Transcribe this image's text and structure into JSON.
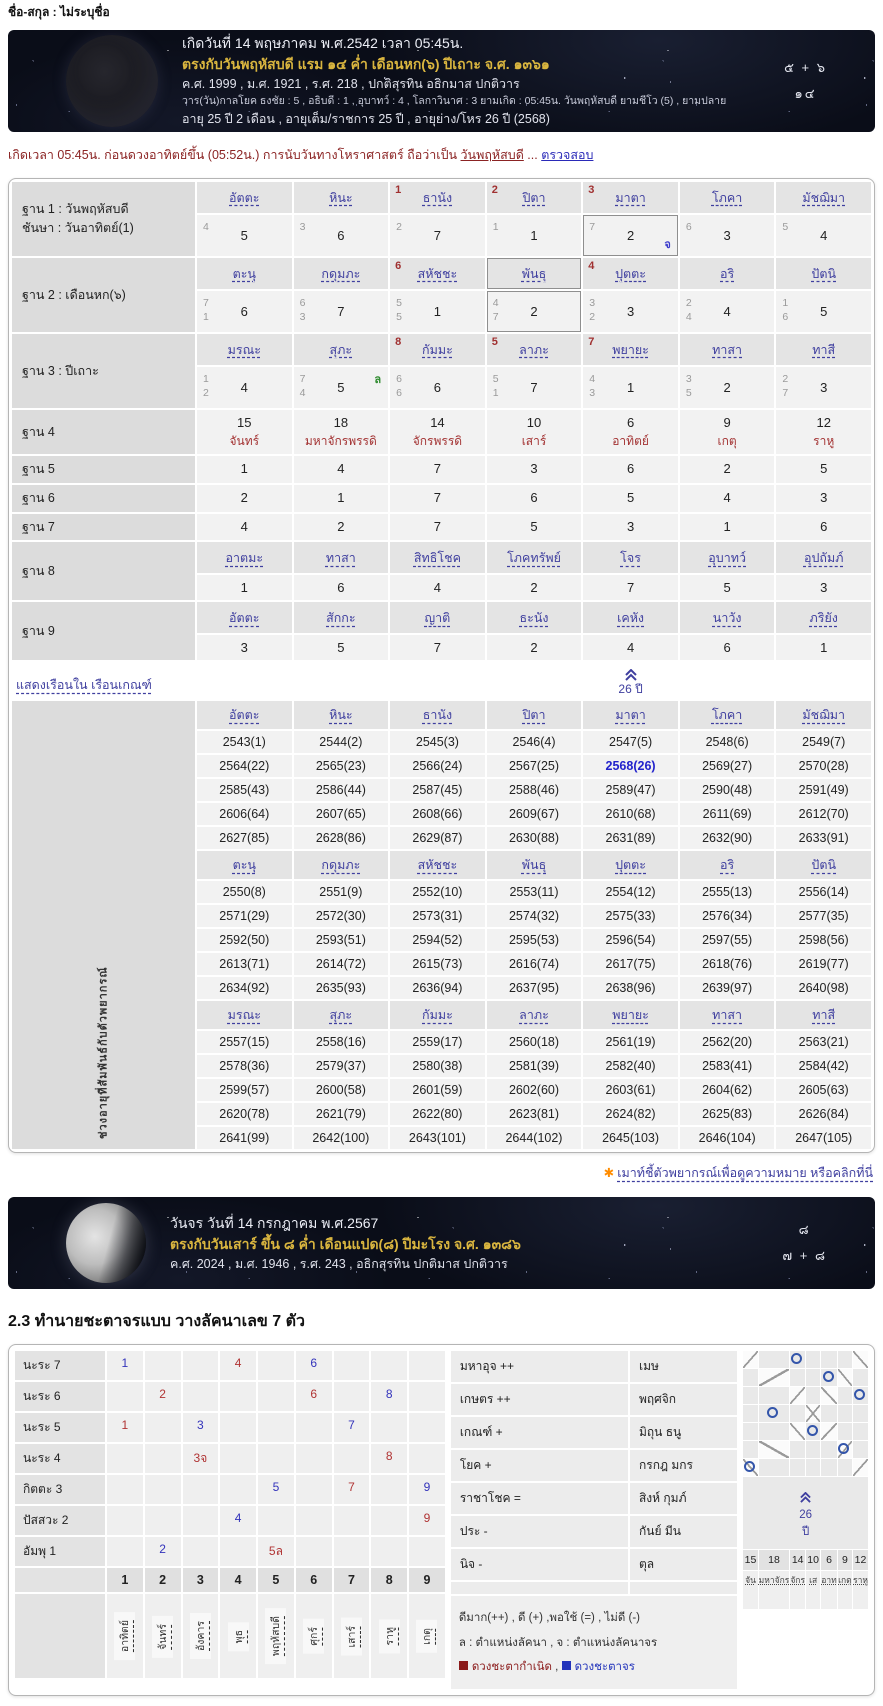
{
  "colors": {
    "link": "#3f3f9f",
    "corner_red": "#a03030",
    "planet_red": "#a33333",
    "note_maroon": "#8b2323",
    "gold": "#d9b53f",
    "natal_red": "#8b1a1a",
    "transit_blue": "#2233bb",
    "highlight_year": "#2222cc"
  },
  "header": {
    "name_line": "ชื่อ-สกุล : ไม่ระบุชื่อ"
  },
  "banner_birth": {
    "line1": "เกิดวันที่ 14 พฤษภาคม พ.ศ.2542 เวลา 05:45น.",
    "line2": "ตรงกับวันพฤหัสบดี แรม ๑๔ ค่ำ เดือนหก(๖) ปีเถาะ จ.ศ. ๑๓๖๑",
    "line3": "ค.ศ. 1999 , ม.ศ. 1921 , ร.ศ. 218 , ปกติสุรทิน อธิกมาส ปกติวาร",
    "line4": "วาร(วัน)กาลโยค ธงชัย : 5 , อธิบดี : 1 , อุบาทว์ : 4 , โลกาวินาศ : 3 ยามเกิด : 05:45น. วันพฤหัสบดี ยามชีโว (5) , ยามปลาย",
    "line5": "อายุ 25 ปี 2 เดือน , อายุเต็ม/ราชการ 25 ปี , อายุย่าง/โหร 26 ปี (2568)",
    "numerals_top": "๕ + ๖",
    "numerals_bottom": "๑๔"
  },
  "birth_note": {
    "text_before": "เกิดเวลา 05:45น. ก่อนดวงอาทิตย์ขึ้น (05:52น.) การนับวันทางโหราศาสตร์ ถือว่าเป็น ",
    "link_day": "วันพฤหัสบดี",
    "dots": " ... ",
    "link_check": "ตรวจสอบ"
  },
  "base_table": {
    "houses": [
      {
        "kind": "terms",
        "label_lines": [
          "ฐาน 1 : วันพฤหัสบดี",
          "ชันษา : วันอาทิตย์(1)"
        ],
        "cells": [
          {
            "h": "อัตตะ",
            "s": [
              "4"
            ],
            "v": "5"
          },
          {
            "h": "หินะ",
            "s": [
              "3"
            ],
            "v": "6"
          },
          {
            "h": "ธานัง",
            "c": "1",
            "s": [
              "2"
            ],
            "v": "7"
          },
          {
            "h": "ปิตา",
            "c": "2",
            "s": [
              "1"
            ],
            "v": "1"
          },
          {
            "h": "มาตา",
            "c": "3",
            "s": [
              "7"
            ],
            "v": "2",
            "mark": {
              "t": "จ",
              "pos": "br",
              "color": "#3a3acc"
            },
            "boxed": true
          },
          {
            "h": "โภคา",
            "s": [
              "6"
            ],
            "v": "3"
          },
          {
            "h": "มัชฌิมา",
            "s": [
              "5"
            ],
            "v": "4"
          }
        ]
      },
      {
        "kind": "terms",
        "label_lines": [
          "ฐาน 2 : เดือนหก(๖)"
        ],
        "cells": [
          {
            "h": "ตะนุ",
            "s": [
              "7",
              "1"
            ],
            "v": "6"
          },
          {
            "h": "กดุมภะ",
            "s": [
              "6",
              "3"
            ],
            "v": "7"
          },
          {
            "h": "สหัชชะ",
            "c": "6",
            "s": [
              "5",
              "5"
            ],
            "v": "1"
          },
          {
            "h": "พันธุ",
            "s": [
              "4",
              "7"
            ],
            "v": "2",
            "boxed": true,
            "boxed_header": true
          },
          {
            "h": "ปุตตะ",
            "c": "4",
            "s": [
              "3",
              "2"
            ],
            "v": "3"
          },
          {
            "h": "อริ",
            "s": [
              "2",
              "4"
            ],
            "v": "4"
          },
          {
            "h": "ปัตนิ",
            "s": [
              "1",
              "6"
            ],
            "v": "5"
          }
        ]
      },
      {
        "kind": "terms",
        "label_lines": [
          "ฐาน 3 : ปีเถาะ"
        ],
        "cells": [
          {
            "h": "มรณะ",
            "s": [
              "1",
              "2"
            ],
            "v": "4"
          },
          {
            "h": "สุภะ",
            "s": [
              "7",
              "4"
            ],
            "v": "5",
            "mark": {
              "t": "ล",
              "pos": "tr",
              "color": "#2e8b2e"
            }
          },
          {
            "h": "กัมมะ",
            "c": "8",
            "s": [
              "6",
              "6"
            ],
            "v": "6"
          },
          {
            "h": "ลาภะ",
            "c": "5",
            "s": [
              "5",
              "1"
            ],
            "v": "7"
          },
          {
            "h": "พยายะ",
            "c": "7",
            "s": [
              "4",
              "3"
            ],
            "v": "1"
          },
          {
            "h": "ทาสา",
            "s": [
              "3",
              "5"
            ],
            "v": "2"
          },
          {
            "h": "ทาสี",
            "s": [
              "2",
              "7"
            ],
            "v": "3"
          }
        ]
      },
      {
        "kind": "planet",
        "label_lines": [
          "ฐาน 4"
        ],
        "cells": [
          {
            "v": "15",
            "n": "จันทร์"
          },
          {
            "v": "18",
            "n": "มหาจักรพรรดิ"
          },
          {
            "v": "14",
            "n": "จักรพรรดิ"
          },
          {
            "v": "10",
            "n": "เสาร์"
          },
          {
            "v": "6",
            "n": "อาทิตย์"
          },
          {
            "v": "9",
            "n": "เกตุ"
          },
          {
            "v": "12",
            "n": "ราหู"
          }
        ]
      },
      {
        "kind": "plain",
        "label_lines": [
          "ฐาน 5"
        ],
        "values": [
          "1",
          "4",
          "7",
          "3",
          "6",
          "2",
          "5"
        ]
      },
      {
        "kind": "plain",
        "label_lines": [
          "ฐาน 6"
        ],
        "values": [
          "2",
          "1",
          "7",
          "6",
          "5",
          "4",
          "3"
        ]
      },
      {
        "kind": "plain",
        "label_lines": [
          "ฐาน 7"
        ],
        "values": [
          "4",
          "2",
          "7",
          "5",
          "3",
          "1",
          "6"
        ]
      },
      {
        "kind": "terms2",
        "label_lines": [
          "ฐาน 8"
        ],
        "cells": [
          {
            "h": "อาตมะ",
            "v": "1"
          },
          {
            "h": "ทาสา",
            "v": "6"
          },
          {
            "h": "สิทธิโชค",
            "v": "4"
          },
          {
            "h": "โภคทรัพย์",
            "v": "2"
          },
          {
            "h": "โจร",
            "v": "7"
          },
          {
            "h": "อุบาทว์",
            "v": "5"
          },
          {
            "h": "อุปถัมภ์",
            "v": "3"
          }
        ]
      },
      {
        "kind": "terms2",
        "label_lines": [
          "ฐาน 9"
        ],
        "cells": [
          {
            "h": "อัตตะ",
            "v": "3"
          },
          {
            "h": "สักกะ",
            "v": "5"
          },
          {
            "h": "ญาติ",
            "v": "7"
          },
          {
            "h": "ธะนัง",
            "v": "2"
          },
          {
            "h": "เคหัง",
            "v": "4"
          },
          {
            "h": "นาวัง",
            "v": "6"
          },
          {
            "h": "ภริยัง",
            "v": "1"
          }
        ]
      }
    ]
  },
  "divider": {
    "link": "แสดงเรือนใน เรือนเกณฑ์",
    "marker_text": "26 ปี"
  },
  "years_table": {
    "side_label": "ช่วงอายุที่สัมพันธ์กับตัวพยากรณ์",
    "highlight": "2568(26)",
    "groups": [
      {
        "headers": [
          "อัตตะ",
          "หินะ",
          "ธานัง",
          "ปิตา",
          "มาตา",
          "โภคา",
          "มัชฌิมา"
        ],
        "rows": [
          [
            "2543(1)",
            "2544(2)",
            "2545(3)",
            "2546(4)",
            "2547(5)",
            "2548(6)",
            "2549(7)"
          ],
          [
            "2564(22)",
            "2565(23)",
            "2566(24)",
            "2567(25)",
            "2568(26)",
            "2569(27)",
            "2570(28)"
          ],
          [
            "2585(43)",
            "2586(44)",
            "2587(45)",
            "2588(46)",
            "2589(47)",
            "2590(48)",
            "2591(49)"
          ],
          [
            "2606(64)",
            "2607(65)",
            "2608(66)",
            "2609(67)",
            "2610(68)",
            "2611(69)",
            "2612(70)"
          ],
          [
            "2627(85)",
            "2628(86)",
            "2629(87)",
            "2630(88)",
            "2631(89)",
            "2632(90)",
            "2633(91)"
          ]
        ]
      },
      {
        "headers": [
          "ตะนุ",
          "กดุมภะ",
          "สหัชชะ",
          "พันธุ",
          "ปุตตะ",
          "อริ",
          "ปัตนิ"
        ],
        "rows": [
          [
            "2550(8)",
            "2551(9)",
            "2552(10)",
            "2553(11)",
            "2554(12)",
            "2555(13)",
            "2556(14)"
          ],
          [
            "2571(29)",
            "2572(30)",
            "2573(31)",
            "2574(32)",
            "2575(33)",
            "2576(34)",
            "2577(35)"
          ],
          [
            "2592(50)",
            "2593(51)",
            "2594(52)",
            "2595(53)",
            "2596(54)",
            "2597(55)",
            "2598(56)"
          ],
          [
            "2613(71)",
            "2614(72)",
            "2615(73)",
            "2616(74)",
            "2617(75)",
            "2618(76)",
            "2619(77)"
          ],
          [
            "2634(92)",
            "2635(93)",
            "2636(94)",
            "2637(95)",
            "2638(96)",
            "2639(97)",
            "2640(98)"
          ]
        ]
      },
      {
        "headers": [
          "มรณะ",
          "สุภะ",
          "กัมมะ",
          "ลาภะ",
          "พยายะ",
          "ทาสา",
          "ทาสี"
        ],
        "rows": [
          [
            "2557(15)",
            "2558(16)",
            "2559(17)",
            "2560(18)",
            "2561(19)",
            "2562(20)",
            "2563(21)"
          ],
          [
            "2578(36)",
            "2579(37)",
            "2580(38)",
            "2581(39)",
            "2582(40)",
            "2583(41)",
            "2584(42)"
          ],
          [
            "2599(57)",
            "2600(58)",
            "2601(59)",
            "2602(60)",
            "2603(61)",
            "2604(62)",
            "2605(63)"
          ],
          [
            "2620(78)",
            "2621(79)",
            "2622(80)",
            "2623(81)",
            "2624(82)",
            "2625(83)",
            "2626(84)"
          ],
          [
            "2641(99)",
            "2642(100)",
            "2643(101)",
            "2644(102)",
            "2645(103)",
            "2646(104)",
            "2647(105)"
          ]
        ]
      }
    ]
  },
  "footnote": {
    "asterisk": "✱",
    "link": "เมาท์ชี้ตัวพยากรณ์เพื่อดูความหมาย หรือคลิกที่นี่"
  },
  "banner_transit": {
    "line1": "วันจร วันที่ 14 กรกฎาคม พ.ศ.2567",
    "line2": "ตรงกับวันเสาร์ ขึ้น ๘ ค่ำ เดือนแปด(๘) ปีมะโรง จ.ศ. ๑๓๘๖",
    "line3": "ค.ศ. 2024 , ม.ศ. 1946 , ร.ศ. 243 , อธิกสุรทิน ปกติมาส ปกติวาร",
    "numerals_top": "๘",
    "numerals_bottom": "๗ + ๘"
  },
  "section_heading": "2.3 ทำนายชะตาจรแบบ วางลัคนาเลข 7 ตัว",
  "transit_grid": {
    "rows": [
      {
        "label": "นะระ 7",
        "cells": [
          {
            "col": 1,
            "v": "1",
            "color": "blue"
          },
          {
            "col": 4,
            "v": "4",
            "color": "red"
          },
          {
            "col": 6,
            "v": "6",
            "color": "blue"
          }
        ]
      },
      {
        "label": "นะระ 6",
        "cells": [
          {
            "col": 2,
            "v": "2",
            "color": "red"
          },
          {
            "col": 6,
            "v": "6",
            "color": "red"
          },
          {
            "col": 8,
            "v": "8",
            "color": "blue"
          }
        ]
      },
      {
        "label": "นะระ 5",
        "cells": [
          {
            "col": 1,
            "v": "1",
            "color": "red"
          },
          {
            "col": 3,
            "v": "3",
            "color": "blue"
          },
          {
            "col": 7,
            "v": "7",
            "color": "blue"
          }
        ]
      },
      {
        "label": "นะระ 4",
        "cells": [
          {
            "col": 3,
            "v": "3จ",
            "color": "red"
          },
          {
            "col": 8,
            "v": "8",
            "color": "red"
          }
        ]
      },
      {
        "label": "กิตตะ 3",
        "cells": [
          {
            "col": 5,
            "v": "5",
            "color": "blue"
          },
          {
            "col": 7,
            "v": "7",
            "color": "red"
          },
          {
            "col": 9,
            "v": "9",
            "color": "blue"
          }
        ]
      },
      {
        "label": "ปัสสวะ 2",
        "cells": [
          {
            "col": 4,
            "v": "4",
            "color": "blue"
          },
          {
            "col": 9,
            "v": "9",
            "color": "red"
          }
        ]
      },
      {
        "label": "อัมพุ 1",
        "cells": [
          {
            "col": 2,
            "v": "2",
            "color": "blue"
          },
          {
            "col": 5,
            "v": "5ล",
            "color": "red"
          }
        ]
      }
    ],
    "column_numbers": [
      "1",
      "2",
      "3",
      "4",
      "5",
      "6",
      "7",
      "8",
      "9"
    ],
    "planets": [
      "อาทิตย์",
      "จันทร์",
      "อังคาร",
      "พุธ",
      "พฤหัสบดี",
      "ศุกร์",
      "เสาร์",
      "ราหู",
      "เกตุ"
    ]
  },
  "status_panel": {
    "rows": [
      {
        "status": "มหาอุจ ++",
        "signs": "เมษ"
      },
      {
        "status": "เกษตร ++",
        "signs": "พฤศจิก"
      },
      {
        "status": "เกณฑ์ +",
        "signs": "มิถุน ธนู"
      },
      {
        "status": "โยค +",
        "signs": "กรกฎ มกร"
      },
      {
        "status": "ราชาโชค =",
        "signs": "สิงห์ กุมภ์"
      },
      {
        "status": "ประ -",
        "signs": "กันย์ มีน"
      },
      {
        "status": "นิจ -",
        "signs": "ตุล"
      }
    ],
    "legend_line1": "ดีมาก(++) , ดี (+) ,พอใช้ (=) , ไม่ดี (-)",
    "legend_line2": "ล : ตำแหน่งลัคนา , จ : ตำแหน่งลัคนาจร",
    "legend_natal": "ดวงชะตากำเนิด",
    "legend_transit": "ดวงชะตาจร"
  },
  "house_diagram": {
    "size": 7,
    "circles": [
      [
        1,
        3
      ],
      [
        2,
        5
      ],
      [
        3,
        7
      ],
      [
        4,
        2
      ],
      [
        5,
        4
      ],
      [
        6,
        6
      ],
      [
        7,
        1
      ]
    ],
    "marker_line1": "26",
    "marker_line2": "ปี",
    "numbers": [
      "15",
      "18",
      "14",
      "10",
      "6",
      "9",
      "12"
    ],
    "names": [
      "จัน",
      "มหาจักร",
      "จักร",
      "เส",
      "อาท",
      "เกตุ",
      "ราหู"
    ]
  }
}
